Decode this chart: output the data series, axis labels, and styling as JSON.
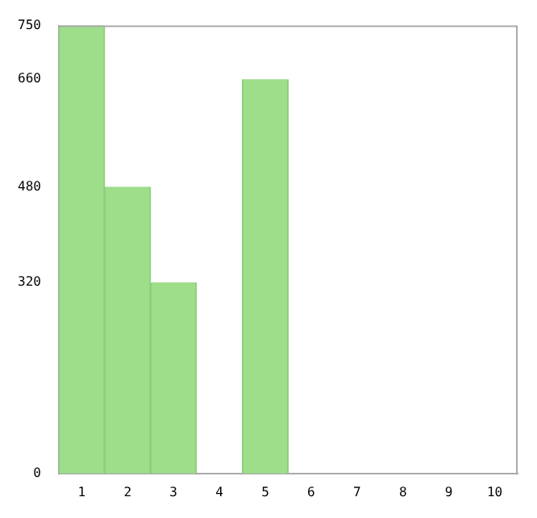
{
  "chart_data": {
    "type": "bar",
    "categories": [
      "1",
      "2",
      "3",
      "4",
      "5",
      "6",
      "7",
      "8",
      "9",
      "10"
    ],
    "values": [
      750,
      480,
      320,
      0,
      660,
      0,
      0,
      0,
      0,
      0
    ],
    "color": "#9ede8a",
    "ylim": [
      0,
      750
    ],
    "yticks": [
      0,
      320,
      480,
      660,
      750
    ],
    "grid": false
  }
}
